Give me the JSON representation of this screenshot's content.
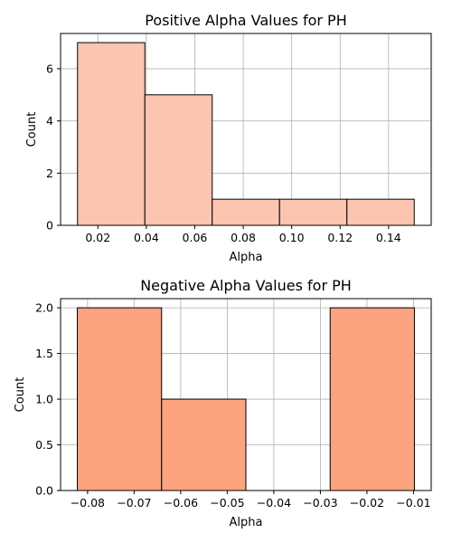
{
  "chart_data": [
    {
      "type": "bar",
      "title": "Positive Alpha Values for PH",
      "xlabel": "Alpha",
      "ylabel": "Count",
      "bin_edges": [
        0.0116,
        0.0394,
        0.0672,
        0.095,
        0.1228,
        0.1506
      ],
      "values": [
        7,
        5,
        1,
        1,
        1
      ],
      "xlim": [
        0.0046,
        0.1576
      ],
      "ylim": [
        0,
        7.35
      ],
      "xticks": [
        0.02,
        0.04,
        0.06,
        0.08,
        0.1,
        0.12,
        0.14
      ],
      "xtick_labels": [
        "0.02",
        "0.04",
        "0.06",
        "0.08",
        "0.10",
        "0.12",
        "0.14"
      ],
      "yticks": [
        0,
        2,
        4,
        6
      ],
      "ytick_labels": [
        "0",
        "2",
        "4",
        "6"
      ],
      "bar_color": "#fcc5b0",
      "grid": true,
      "legend": "none"
    },
    {
      "type": "bar",
      "title": "Negative Alpha Values for PH",
      "xlabel": "Alpha",
      "ylabel": "Count",
      "bin_edges": [
        -0.0822,
        -0.0641,
        -0.046,
        -0.0279,
        -0.0098
      ],
      "values": [
        2,
        1,
        0,
        2
      ],
      "xlim": [
        -0.0858,
        -0.0062
      ],
      "ylim": [
        0,
        2.1
      ],
      "xticks": [
        -0.08,
        -0.07,
        -0.06,
        -0.05,
        -0.04,
        -0.03,
        -0.02,
        -0.01
      ],
      "xtick_labels": [
        "−0.08",
        "−0.07",
        "−0.06",
        "−0.05",
        "−0.04",
        "−0.03",
        "−0.02",
        "−0.01"
      ],
      "yticks": [
        0,
        0.5,
        1.0,
        1.5,
        2.0
      ],
      "ytick_labels": [
        "0.0",
        "0.5",
        "1.0",
        "1.5",
        "2.0"
      ],
      "bar_color": "#fca37f",
      "grid": true,
      "legend": "none"
    }
  ]
}
